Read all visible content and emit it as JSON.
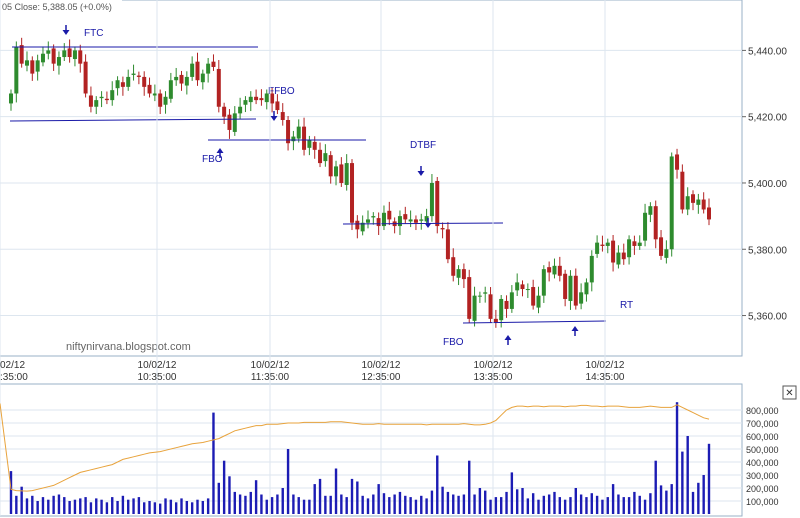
{
  "header": {
    "text": "05   Close: 5,388.05  (+0.0%)"
  },
  "watermark": "niftynirvana.blogspot.com",
  "close_button_glyph": "✕",
  "colors": {
    "up": "#2e8b2e",
    "down": "#b22222",
    "annotation": "#1a1aa8",
    "volume_bar": "#1c1cb4",
    "volume_line": "#e8a33c",
    "grid": "#dde6ef",
    "frame": "#9ab1c7"
  },
  "annotations": [
    {
      "id": "ftc",
      "text": "FTC"
    },
    {
      "id": "fbo1",
      "text": "FBO"
    },
    {
      "id": "ffbo",
      "text": "FFBO"
    },
    {
      "id": "dtbf",
      "text": "DTBF"
    },
    {
      "id": "fbo2",
      "text": "FBO"
    },
    {
      "id": "rt",
      "text": "RT"
    }
  ],
  "chart_data": [
    {
      "type": "candlestick",
      "y_ticks": [
        "5,440.00",
        "5,420.00",
        "5,400.00",
        "5,380.00",
        "5,360.00"
      ],
      "x_ticks": [
        {
          "date": "02/12",
          "time": ":35:00"
        },
        {
          "date": "10/02/12",
          "time": "10:35:00"
        },
        {
          "date": "10/02/12",
          "time": "11:35:00"
        },
        {
          "date": "10/02/12",
          "time": "12:35:00"
        },
        {
          "date": "10/02/12",
          "time": "13:35:00"
        },
        {
          "date": "10/02/12",
          "time": "14:35:00"
        }
      ],
      "ylim": [
        5349,
        5454
      ],
      "grid": true,
      "close": [
        5427,
        5441,
        5436,
        5437,
        5433,
        5437,
        5439,
        5440,
        5436,
        5438,
        5440,
        5438,
        5440,
        5436,
        5427,
        5423,
        5425,
        5426,
        5425,
        5428,
        5431,
        5429,
        5432,
        5433,
        5432,
        5429,
        5427,
        5427,
        5423,
        5426,
        5431,
        5432,
        5430,
        5432,
        5436,
        5431,
        5433,
        5436,
        5435,
        5423,
        5420,
        5416,
        5421,
        5423,
        5425,
        5426,
        5425,
        5425,
        5427,
        5424,
        5422,
        5419,
        5412,
        5414,
        5417,
        5410,
        5413,
        5410,
        5406,
        5409,
        5402,
        5405,
        5400,
        5406,
        5388,
        5386,
        5388,
        5389,
        5390,
        5387,
        5391,
        5389,
        5387,
        5390,
        5389,
        5389,
        5388,
        5389,
        5390,
        5400,
        5387,
        5386,
        5377,
        5372,
        5374,
        5371,
        5359,
        5366,
        5366,
        5367,
        5359,
        5358,
        5365,
        5362,
        5367,
        5370,
        5368,
        5368,
        5363,
        5366,
        5374,
        5373,
        5375,
        5372,
        5365,
        5372,
        5363,
        5367,
        5370,
        5378,
        5382,
        5381,
        5382,
        5376,
        5379,
        5377,
        5383,
        5381,
        5382,
        5391,
        5393,
        5383,
        5378,
        5380,
        5408,
        5404,
        5392,
        5396,
        5394,
        5395,
        5392,
        5389
      ],
      "volume": {
        "ylim": [
          0,
          900000
        ],
        "y_ticks": [
          "800,000",
          "700,000",
          "600,000",
          "500,000",
          "400,000",
          "300,000",
          "200,000",
          "100,000"
        ],
        "values": [
          330000,
          140000,
          210000,
          120000,
          140000,
          100000,
          130000,
          110000,
          140000,
          150000,
          130000,
          100000,
          110000,
          120000,
          130000,
          90000,
          120000,
          110000,
          90000,
          130000,
          100000,
          140000,
          110000,
          120000,
          130000,
          90000,
          100000,
          90000,
          80000,
          120000,
          110000,
          90000,
          120000,
          100000,
          90000,
          110000,
          100000,
          120000,
          780000,
          240000,
          410000,
          290000,
          170000,
          150000,
          140000,
          170000,
          260000,
          150000,
          110000,
          130000,
          150000,
          200000,
          500000,
          150000,
          130000,
          110000,
          110000,
          230000,
          270000,
          140000,
          140000,
          350000,
          150000,
          130000,
          270000,
          250000,
          140000,
          120000,
          150000,
          230000,
          160000,
          130000,
          150000,
          170000,
          140000,
          130000,
          110000,
          140000,
          120000,
          180000,
          450000,
          210000,
          170000,
          150000,
          140000,
          150000,
          410000,
          150000,
          200000,
          180000,
          110000,
          130000,
          130000,
          170000,
          320000,
          190000,
          200000,
          120000,
          160000,
          110000,
          140000,
          150000,
          170000,
          130000,
          110000,
          130000,
          200000,
          150000,
          130000,
          160000,
          140000,
          110000,
          130000,
          230000,
          150000,
          130000,
          130000,
          170000,
          140000,
          110000,
          160000,
          410000,
          220000,
          180000,
          230000,
          860000,
          480000,
          600000,
          170000,
          240000,
          300000,
          540000
        ],
        "average": [
          190000,
          180000,
          178000,
          176000,
          180000,
          190000,
          200000,
          210000,
          220000,
          240000,
          260000,
          280000,
          300000,
          320000,
          330000,
          340000,
          350000,
          360000,
          370000,
          380000,
          400000,
          420000,
          430000,
          440000,
          450000,
          460000,
          470000,
          475000,
          480000,
          490000,
          500000,
          510000,
          520000,
          530000,
          540000,
          545000,
          550000,
          560000,
          570000,
          580000,
          600000,
          620000,
          640000,
          650000,
          660000,
          670000,
          680000,
          680000,
          690000,
          690000,
          690000,
          695000,
          700000,
          700000,
          700000,
          705000,
          705000,
          705000,
          705000,
          705000,
          710000,
          710000,
          710000,
          705000,
          700000,
          695000,
          690000,
          690000,
          690000,
          695000,
          690000,
          690000,
          690000,
          690000,
          690000,
          690000,
          690000,
          690000,
          685000,
          690000,
          690000,
          690000,
          690000,
          690000,
          690000,
          695000,
          690000,
          685000,
          685000,
          690000,
          700000,
          720000,
          760000,
          800000,
          820000,
          830000,
          830000,
          825000,
          830000,
          830000,
          825000,
          830000,
          830000,
          830000,
          825000,
          830000,
          830000,
          835000,
          835000,
          830000,
          830000,
          825000,
          830000,
          830000,
          830000,
          825000,
          820000,
          820000,
          820000,
          825000,
          830000,
          825000,
          820000,
          820000,
          820000,
          840000,
          820000,
          800000,
          780000,
          760000,
          740000,
          730000
        ]
      }
    }
  ]
}
